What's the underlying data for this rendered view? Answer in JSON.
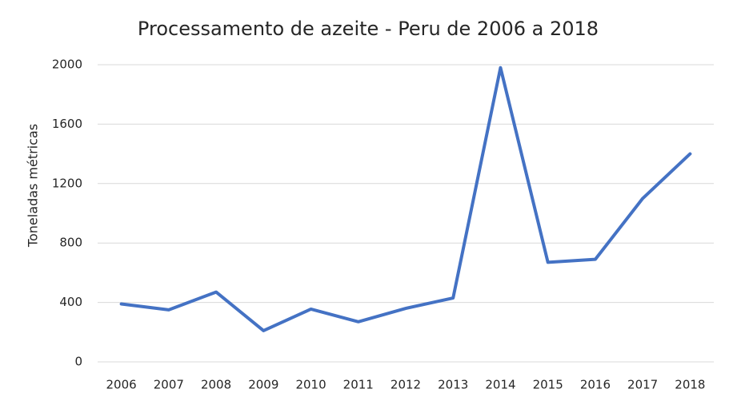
{
  "chart_data": {
    "type": "line",
    "title": "Processamento de azeite - Peru de 2006 a 2018",
    "y_label": "Toneladas métricas",
    "categories": [
      "2006",
      "2007",
      "2008",
      "2009",
      "2010",
      "2011",
      "2012",
      "2013",
      "2014",
      "2015",
      "2016",
      "2017",
      "2018"
    ],
    "values": [
      390,
      350,
      470,
      210,
      355,
      270,
      360,
      430,
      1980,
      670,
      690,
      1100,
      1400
    ],
    "color": "#4472c4",
    "ylim": [
      0,
      2000
    ],
    "yticks": [
      0,
      400,
      800,
      1200,
      1600,
      2000
    ],
    "grid": true
  }
}
